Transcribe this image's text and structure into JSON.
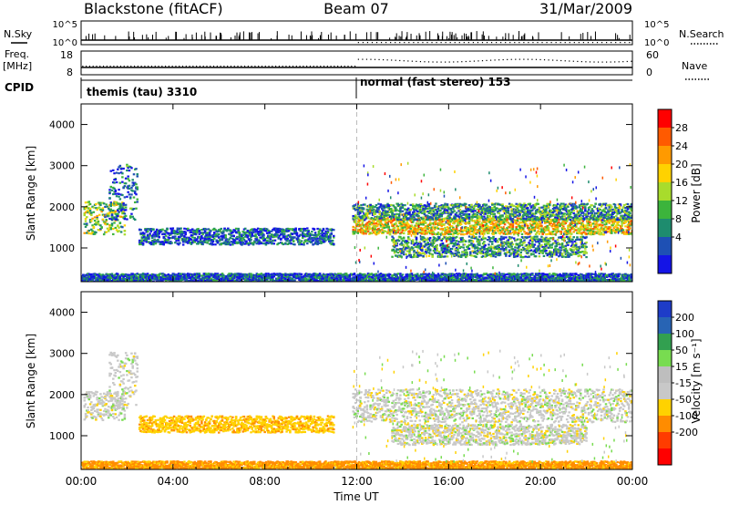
{
  "header": {
    "title": "Blackstone (fitACF)",
    "beam": "Beam 07",
    "date": "31/Mar/2009"
  },
  "status_panel": {
    "nsky_label": "N.Sky",
    "nsky_ticks": [
      "10^5",
      "10^0"
    ],
    "nsearch_label": "N.Search",
    "nsearch_ticks": [
      "10^5",
      "10^0"
    ],
    "freq_label": "Freq.",
    "freq_unit": "[MHz]",
    "freq_ticks": [
      "18",
      "8"
    ],
    "nave_label": "Nave",
    "nave_ticks": [
      "60",
      "0"
    ],
    "cpid_label": "CPID",
    "cpid_modes": [
      {
        "name": "themis (tau) 3310",
        "start_hour": 0
      },
      {
        "name": "normal (fast stereo) 153",
        "start_hour": 12
      }
    ]
  },
  "power_colorbar": {
    "label": "Power [dB]",
    "ticks": [
      "28",
      "24",
      "20",
      "16",
      "12",
      "8",
      "4"
    ],
    "colors": [
      "#ff0000",
      "#ff5a00",
      "#ff9a00",
      "#ffd200",
      "#a8dc2c",
      "#3cb43c",
      "#1e8c6e",
      "#1e50b4",
      "#1414e6"
    ]
  },
  "velocity_colorbar": {
    "label": "Velocity [m s⁻¹]",
    "ticks": [
      "200",
      "100",
      "50",
      "15",
      "-15",
      "-50",
      "-100",
      "-200"
    ],
    "colors": [
      "#1e3cc8",
      "#2864b4",
      "#32a050",
      "#78dc50",
      "#bebebe",
      "#c8c8c8",
      "#ffd200",
      "#ff8c00",
      "#ff3c00",
      "#ff0000"
    ]
  },
  "x_axis": {
    "label": "Time UT",
    "ticks": [
      "00:00",
      "04:00",
      "08:00",
      "12:00",
      "16:00",
      "20:00",
      "00:00"
    ]
  },
  "chart_data": [
    {
      "type": "heatmap",
      "name": "power",
      "xlabel": "Time UT",
      "ylabel": "Slant Range [km]",
      "xlim": [
        0,
        24
      ],
      "ylim": [
        180,
        4500
      ],
      "yticks": [
        1000,
        2000,
        3000,
        4000
      ],
      "colorbar_label": "Power [dB]",
      "colorbar_range": [
        0,
        30
      ],
      "regions": [
        {
          "t0": 0.1,
          "t1": 1.9,
          "r0": 1350,
          "r1": 2150,
          "value": 14
        },
        {
          "t0": 1.2,
          "t1": 2.4,
          "r0": 1700,
          "r1": 3050,
          "value": 6
        },
        {
          "t0": 2.5,
          "t1": 11.0,
          "r0": 1100,
          "r1": 1500,
          "value": 5
        },
        {
          "t0": 11.8,
          "t1": 24.0,
          "r0": 1350,
          "r1": 1750,
          "value": 18
        },
        {
          "t0": 11.8,
          "t1": 24.0,
          "r0": 1700,
          "r1": 2100,
          "value": 9
        },
        {
          "t0": 13.5,
          "t1": 22.0,
          "r0": 800,
          "r1": 1300,
          "value": 9
        },
        {
          "t0": 0.0,
          "t1": 24.0,
          "r0": 200,
          "r1": 400,
          "value": 5
        }
      ]
    },
    {
      "type": "heatmap",
      "name": "velocity",
      "xlabel": "Time UT",
      "ylabel": "Slant Range [km]",
      "xlim": [
        0,
        24
      ],
      "ylim": [
        180,
        4500
      ],
      "yticks": [
        1000,
        2000,
        3000,
        4000
      ],
      "colorbar_label": "Velocity [m s⁻¹]",
      "colorbar_range": [
        -200,
        200
      ],
      "regions": [
        {
          "t0": 0.1,
          "t1": 1.9,
          "r0": 1400,
          "r1": 2100,
          "value": 0
        },
        {
          "t0": 1.2,
          "t1": 2.4,
          "r0": 1700,
          "r1": 3050,
          "value": 0
        },
        {
          "t0": 2.5,
          "t1": 11.0,
          "r0": 1100,
          "r1": 1500,
          "value": -40
        },
        {
          "t0": 11.8,
          "t1": 24.0,
          "r0": 1350,
          "r1": 2150,
          "value": 0
        },
        {
          "t0": 13.5,
          "t1": 22.0,
          "r0": 800,
          "r1": 1300,
          "value": 0
        },
        {
          "t0": 0.0,
          "t1": 24.0,
          "r0": 200,
          "r1": 400,
          "value": -60
        }
      ]
    }
  ]
}
